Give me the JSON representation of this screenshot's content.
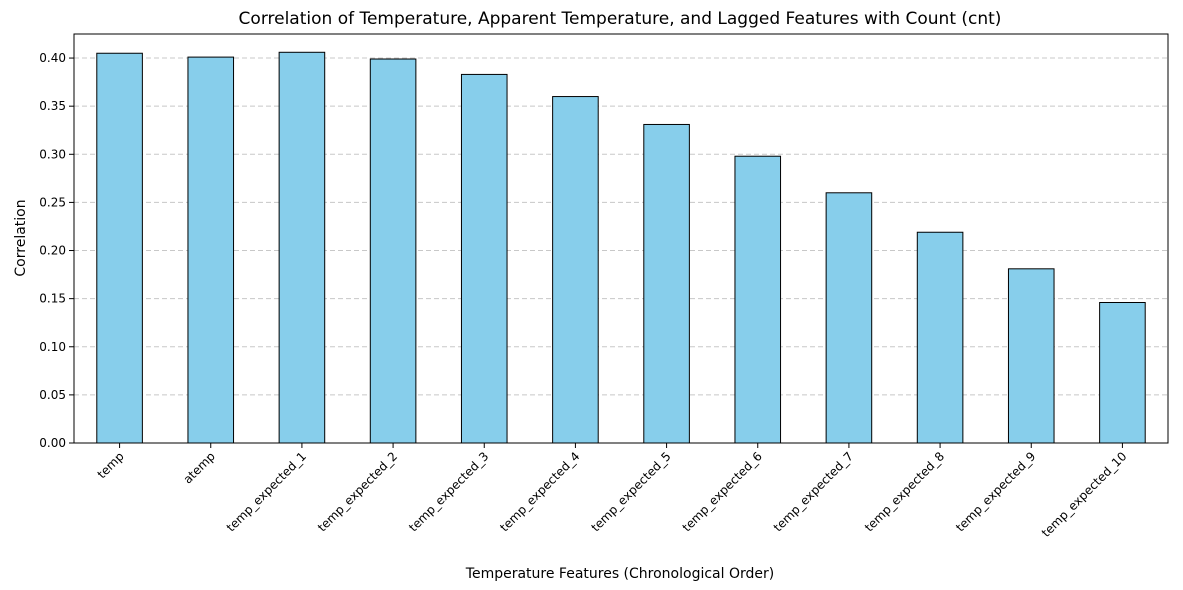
{
  "chart_data": {
    "type": "bar",
    "title": "Correlation of Temperature, Apparent Temperature, and Lagged Features with Count (cnt)",
    "xlabel": "Temperature Features (Chronological Order)",
    "ylabel": "Correlation",
    "categories": [
      "temp",
      "atemp",
      "temp_expected_1",
      "temp_expected_2",
      "temp_expected_3",
      "temp_expected_4",
      "temp_expected_5",
      "temp_expected_6",
      "temp_expected_7",
      "temp_expected_8",
      "temp_expected_9",
      "temp_expected_10"
    ],
    "values": [
      0.405,
      0.401,
      0.406,
      0.399,
      0.383,
      0.36,
      0.331,
      0.298,
      0.26,
      0.219,
      0.181,
      0.146
    ],
    "ylim": [
      0,
      0.425
    ],
    "yticks": [
      0.0,
      0.05,
      0.1,
      0.15,
      0.2,
      0.25,
      0.3,
      0.35,
      0.4
    ],
    "ytick_labels": [
      "0.00",
      "0.05",
      "0.10",
      "0.15",
      "0.20",
      "0.25",
      "0.30",
      "0.35",
      "0.40"
    ],
    "grid": "y-dashed",
    "bar_color": "#87ceeb",
    "edge_color": "#000000",
    "grid_color": "#c8c8c8"
  }
}
